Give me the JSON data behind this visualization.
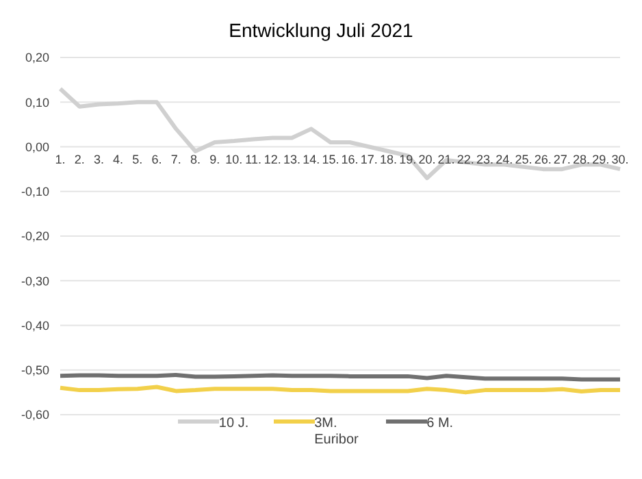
{
  "chart_data": {
    "type": "line",
    "title": "Entwicklung Juli 2021",
    "categories": [
      "1.",
      "2.",
      "3.",
      "4.",
      "5.",
      "6.",
      "7.",
      "8.",
      "9.",
      "10.",
      "11.",
      "12.",
      "13.",
      "14.",
      "15.",
      "16.",
      "17.",
      "18.",
      "19.",
      "20.",
      "21.",
      "22.",
      "23.",
      "24.",
      "25.",
      "26.",
      "27.",
      "28.",
      "29.",
      "30."
    ],
    "series": [
      {
        "name": "10 J.",
        "color": "#d0d0d0",
        "values": [
          0.13,
          0.09,
          0.095,
          0.097,
          0.1,
          0.1,
          0.04,
          -0.01,
          0.01,
          0.013,
          0.017,
          0.02,
          0.02,
          0.04,
          0.01,
          0.01,
          0.0,
          -0.01,
          -0.02,
          -0.07,
          -0.03,
          -0.035,
          -0.04,
          -0.04,
          -0.045,
          -0.05,
          -0.05,
          -0.04,
          -0.04,
          -0.05
        ]
      },
      {
        "name": "3M. Euribor",
        "color": "#f2d04a",
        "values": [
          -0.54,
          -0.545,
          -0.545,
          -0.543,
          -0.542,
          -0.538,
          -0.547,
          -0.545,
          -0.542,
          -0.542,
          -0.542,
          -0.542,
          -0.545,
          -0.545,
          -0.547,
          -0.547,
          -0.547,
          -0.547,
          -0.547,
          -0.542,
          -0.545,
          -0.55,
          -0.545,
          -0.545,
          -0.545,
          -0.545,
          -0.543,
          -0.548,
          -0.545,
          -0.545
        ]
      },
      {
        "name": "6 M.",
        "color": "#707070",
        "values": [
          -0.513,
          -0.512,
          -0.512,
          -0.513,
          -0.513,
          -0.513,
          -0.511,
          -0.515,
          -0.515,
          -0.514,
          -0.513,
          -0.512,
          -0.513,
          -0.513,
          -0.513,
          -0.514,
          -0.514,
          -0.514,
          -0.514,
          -0.518,
          -0.513,
          -0.516,
          -0.519,
          -0.519,
          -0.519,
          -0.519,
          -0.519,
          -0.521,
          -0.521,
          -0.521
        ]
      }
    ],
    "ylim": [
      -0.6,
      0.2
    ],
    "yticks": [
      {
        "value": 0.2,
        "label": "0,20"
      },
      {
        "value": 0.1,
        "label": "0,10"
      },
      {
        "value": 0,
        "label": "0,00"
      },
      {
        "value": -0.1,
        "label": "-0,10"
      },
      {
        "value": -0.2,
        "label": "-0,20"
      },
      {
        "value": -0.3,
        "label": "-0,30"
      },
      {
        "value": -0.4,
        "label": "-0,40"
      },
      {
        "value": -0.5,
        "label": "-0,50"
      },
      {
        "value": -0.6,
        "label": "-0,60"
      }
    ],
    "grid": "y",
    "legend": "bottom",
    "marker": "none",
    "line_style": "solid"
  }
}
